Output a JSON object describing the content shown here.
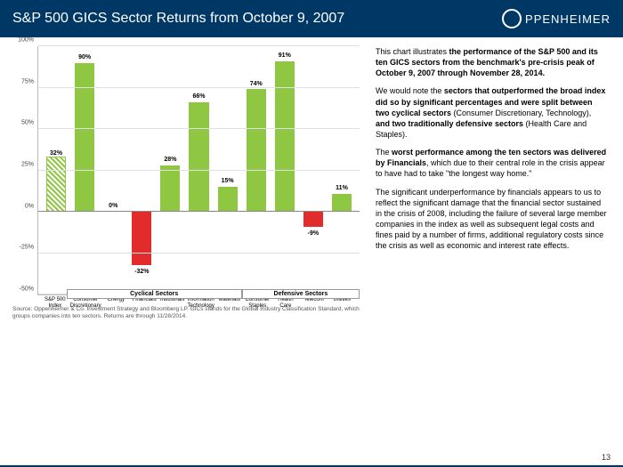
{
  "header": {
    "title": "S&P 500 GICS Sector Returns from October 9, 2007",
    "logo_text": "PPENHEIMER"
  },
  "chart": {
    "type": "bar",
    "ylim": [
      -50,
      100
    ],
    "ytick_step": 25,
    "yticks": [
      "-50%",
      "-25%",
      "0%",
      "25%",
      "50%",
      "75%",
      "100%"
    ],
    "zero_level_pct": 33.33,
    "categories": [
      "S&P 500 Index",
      "Consumer Discretionary",
      "Energy",
      "Financials",
      "Industrials",
      "Information Technology",
      "Materials",
      "Consumer Staples",
      "Health Care",
      "Telecom",
      "Utilities"
    ],
    "values": [
      32,
      90,
      0,
      -32,
      28,
      66,
      15,
      74,
      91,
      -9,
      11
    ],
    "styles": [
      "hatched",
      "pos",
      "pos",
      "neg",
      "pos",
      "pos",
      "pos",
      "pos",
      "pos",
      "neg",
      "pos"
    ],
    "bar_color_pos": "#8fc642",
    "bar_color_neg": "#e22b2b",
    "grid_color": "#e0e0e0",
    "groups": [
      {
        "label": "Cyclical Sectors",
        "start": 1,
        "end": 6
      },
      {
        "label": "Defensive Sectors",
        "start": 7,
        "end": 10
      }
    ]
  },
  "source": "Source: Oppenheimer & Co. Investment Strategy and Bloomberg LP.  GICs stands for the Global Industry Classification Standard, which groups companies into ten sectors. Returns are through 11/28/2014.",
  "text": {
    "p1a": "This chart illustrates ",
    "p1b": "the performance of the S&P 500 and its ten GICS sectors from the benchmark's pre-crisis peak of October 9, 2007 through November 28,  2014.",
    "p2a": "We would note the ",
    "p2b": "sectors that outperformed the broad index did so by significant percentages and were split between two cyclical sectors",
    "p2c": " (Consumer Discretionary, Technology), ",
    "p2d": "and two traditionally defensive sectors",
    "p2e": " (Health Care and Staples).",
    "p3a": "The ",
    "p3b": "worst performance among the ten sectors was delivered by Financials",
    "p3c": ", which due to their central role in the crisis appear to have had to take \"the longest way home.\"",
    "p4": "The significant underperformance by financials appears to us to reflect the significant damage that the financial sector sustained in the crisis of 2008, including the failure of several large member companies in the index as well as subsequent legal costs and fines paid by a number of firms, additional regulatory costs since the crisis as well as economic and interest rate effects."
  },
  "page_number": "13"
}
